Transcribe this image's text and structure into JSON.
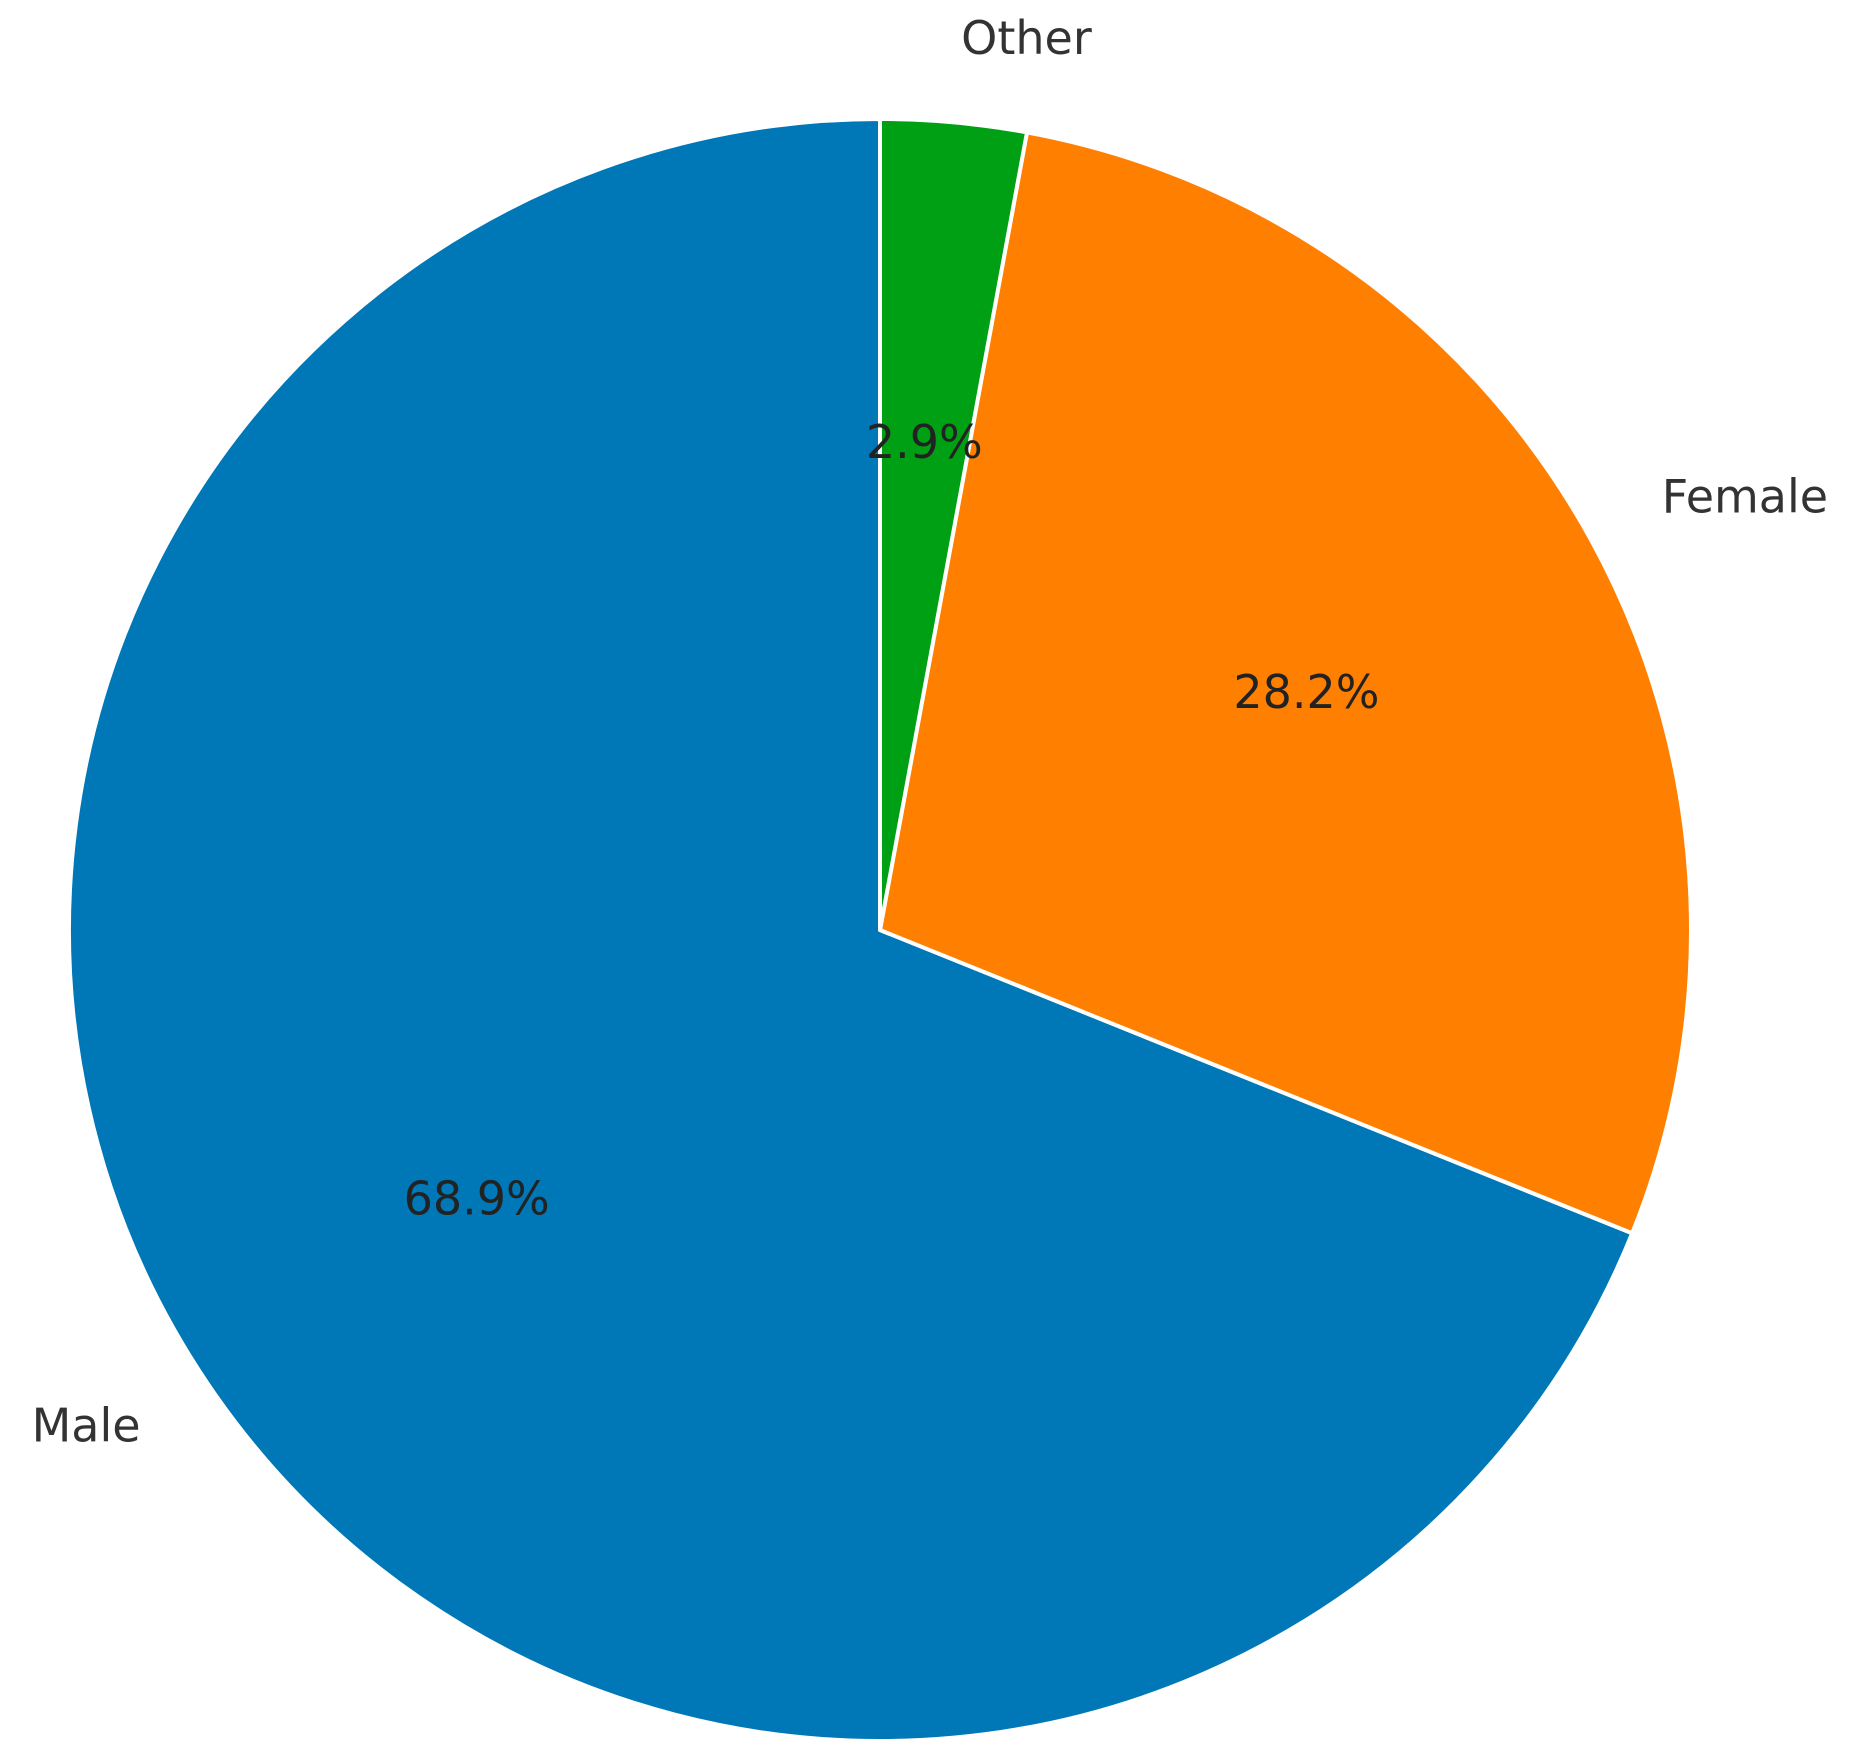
{
  "chart_data": {
    "type": "pie",
    "categories": [
      "Male",
      "Female",
      "Other"
    ],
    "values": [
      68.9,
      28.2,
      2.9
    ],
    "value_labels": [
      "68.9%",
      "28.2%",
      "2.9%"
    ],
    "colors": [
      "#0077b6",
      "#ff7f00",
      "#00a014"
    ],
    "startangle": 90,
    "counterclock": true
  }
}
